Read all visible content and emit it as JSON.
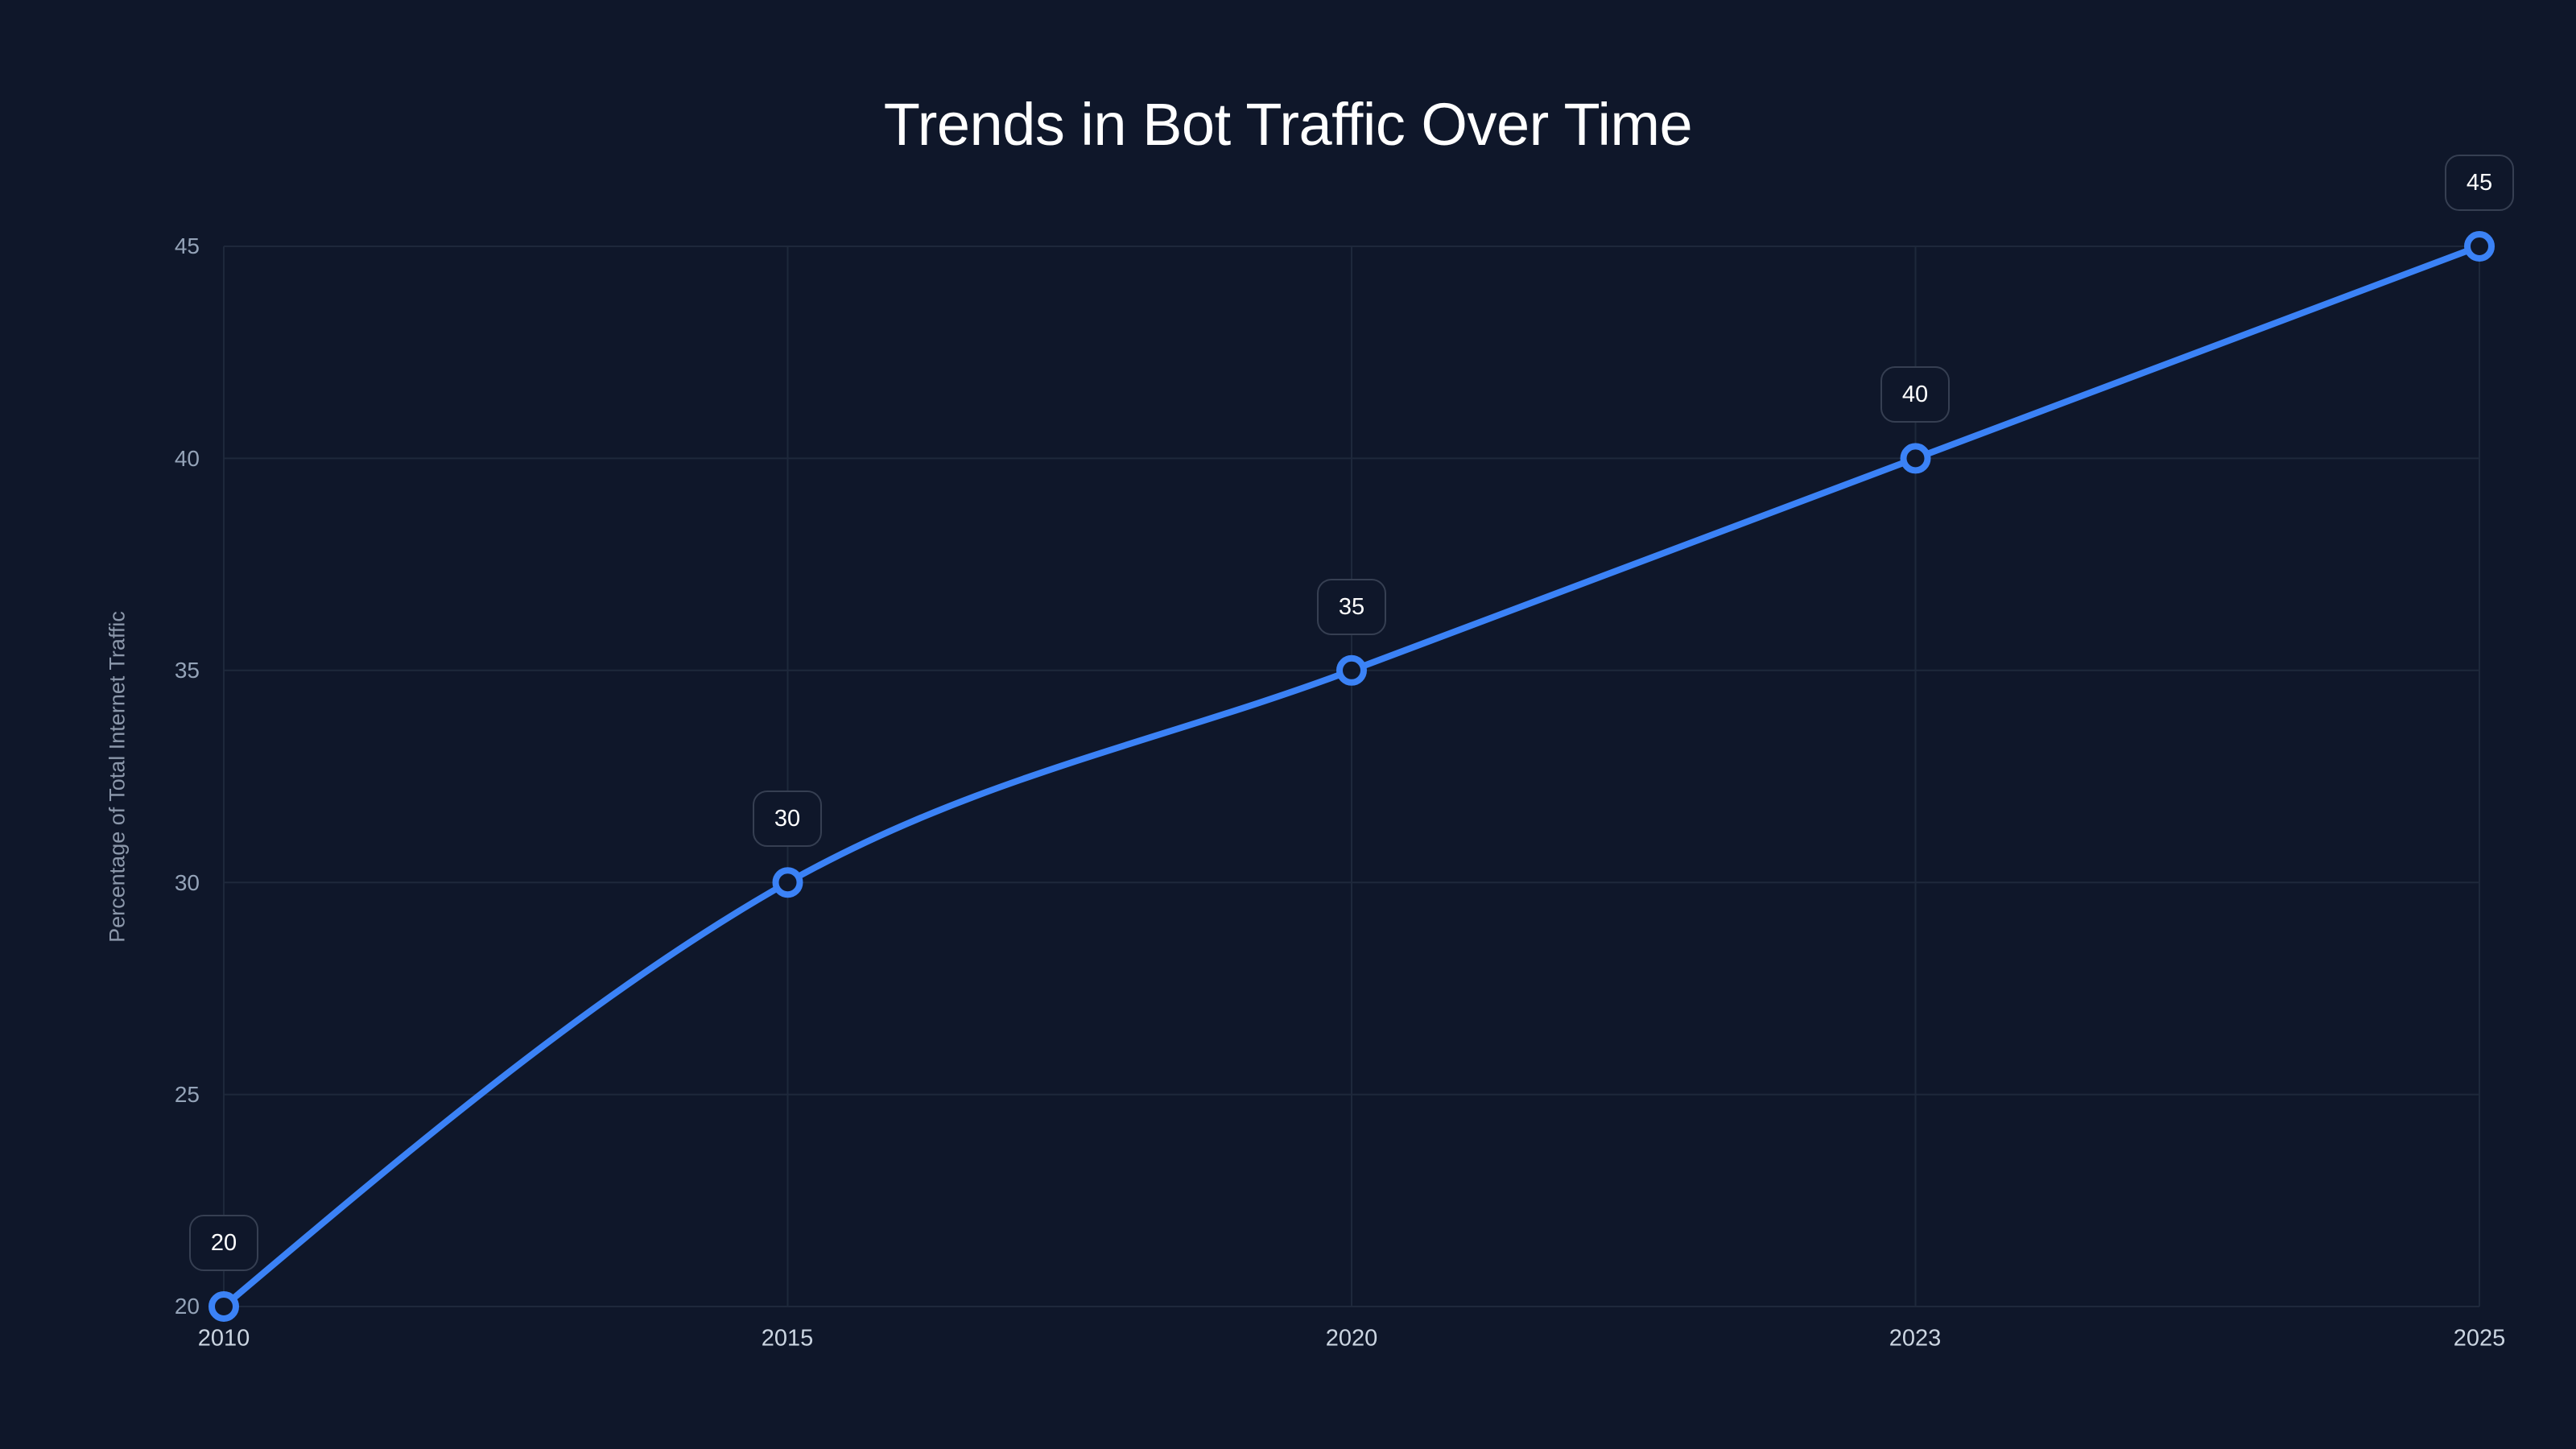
{
  "title": "Trends in Bot Traffic Over Time",
  "y_axis_title": "Percentage of Total Internet Traffic",
  "colors": {
    "background": "#0f172a",
    "line": "#3b82f6",
    "grid": "#1e283b",
    "label_border": "#363f52"
  },
  "y_ticks": [
    "45",
    "40",
    "35",
    "30",
    "25",
    "20"
  ],
  "x_ticks": [
    "2010",
    "2015",
    "2020",
    "2023",
    "2025"
  ],
  "value_labels": [
    "20",
    "30",
    "35",
    "40",
    "45"
  ],
  "chart_data": {
    "type": "line",
    "title": "Trends in Bot Traffic Over Time",
    "xlabel": "",
    "ylabel": "Percentage of Total Internet Traffic",
    "categories": [
      "2010",
      "2015",
      "2020",
      "2023",
      "2025"
    ],
    "series": [
      {
        "name": "Bot Traffic",
        "values": [
          20,
          30,
          35,
          40,
          45
        ]
      }
    ],
    "ylim": [
      20,
      45
    ],
    "yticks": [
      20,
      25,
      30,
      35,
      40,
      45
    ],
    "grid": true,
    "legend": "none",
    "data_labels": true,
    "curve": "smooth (monotone)"
  }
}
